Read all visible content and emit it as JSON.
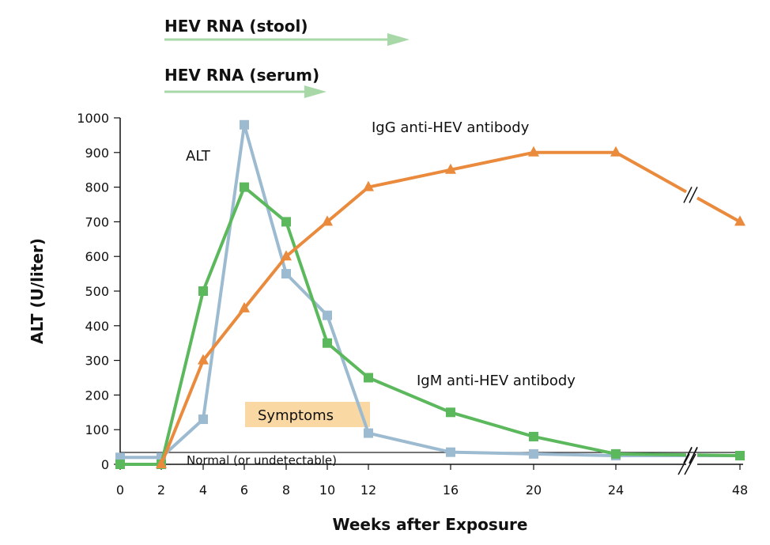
{
  "chart_data": {
    "type": "line",
    "xlabel": "Weeks after Exposure",
    "ylabel": "ALT (U/liter)",
    "ylim": [
      0,
      1000
    ],
    "x_ticks": [
      "0",
      "2",
      "4",
      "6",
      "8",
      "10",
      "12",
      "16",
      "20",
      "24",
      "48"
    ],
    "y_ticks": [
      "0",
      "100",
      "200",
      "300",
      "400",
      "500",
      "600",
      "700",
      "800",
      "900",
      "1000"
    ],
    "series": [
      {
        "name": "ALT",
        "color": "#9dbbd0",
        "marker": "square",
        "x": [
          0,
          2,
          4,
          6,
          8,
          10,
          12,
          16,
          20,
          24,
          48
        ],
        "y": [
          20,
          20,
          130,
          980,
          550,
          430,
          90,
          35,
          30,
          25,
          25
        ]
      },
      {
        "name": "IgM anti-HEV antibody",
        "color": "#5cb85c",
        "marker": "square",
        "x": [
          0,
          2,
          4,
          6,
          8,
          10,
          12,
          16,
          20,
          24,
          48
        ],
        "y": [
          0,
          0,
          500,
          800,
          700,
          350,
          250,
          150,
          80,
          30,
          25
        ]
      },
      {
        "name": "IgG anti-HEV antibody",
        "color": "#ea8a3c",
        "marker": "triangle",
        "x": [
          2,
          4,
          6,
          8,
          10,
          12,
          16,
          20,
          24,
          48
        ],
        "y": [
          0,
          300,
          450,
          600,
          700,
          800,
          850,
          900,
          900,
          700
        ]
      }
    ],
    "bands": [
      {
        "label": "HEV RNA (stool)",
        "color": "#a8d8a8"
      },
      {
        "label": "HEV RNA (serum)",
        "color": "#a8d8a8"
      }
    ],
    "annotations": {
      "symptoms": "Symptoms",
      "normal": "Normal (or undetectable)",
      "symptoms_color": "#f9d8a4"
    }
  }
}
